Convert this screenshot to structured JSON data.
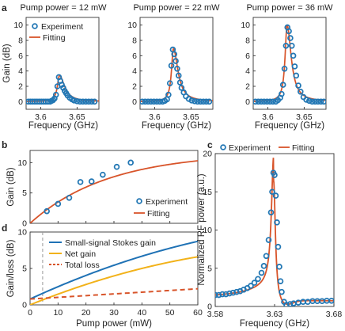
{
  "colors": {
    "experiment": "#2277b4",
    "fitting": "#d8542a",
    "stokes": "#1f72b5",
    "net": "#f2b21a",
    "loss": "#d8542a",
    "axis": "#333333",
    "vline": "#999999"
  },
  "chart_data": [
    {
      "id": "a1",
      "panel_label": "a",
      "type": "scatter",
      "title": "Pump power = 12 mW",
      "xlabel": "Frequency (GHz)",
      "ylabel": "Gain (dB)",
      "xlim": [
        3.58,
        3.68
      ],
      "ylim": [
        -1,
        11
      ],
      "xticks": [
        3.6,
        3.65
      ],
      "xticklabels": [
        "3.6",
        "3.65"
      ],
      "yticks": [
        0,
        2,
        4,
        6,
        8,
        10
      ],
      "yticklabels": [
        "0",
        "2",
        "4",
        "6",
        "8",
        "10"
      ],
      "series": [
        {
          "name": "Experiment",
          "kind": "points",
          "x": [
            3.583,
            3.586,
            3.589,
            3.592,
            3.595,
            3.598,
            3.601,
            3.604,
            3.607,
            3.61,
            3.613,
            3.615,
            3.617,
            3.619,
            3.621,
            3.623,
            3.625,
            3.627,
            3.629,
            3.631,
            3.633,
            3.635,
            3.637,
            3.64,
            3.643,
            3.646,
            3.65,
            3.654,
            3.658,
            3.662,
            3.666,
            3.67,
            3.674
          ],
          "y": [
            0,
            0,
            0,
            0,
            0,
            0,
            0,
            0,
            0,
            0,
            0,
            0.1,
            0.2,
            0.4,
            0.9,
            2.0,
            3.2,
            2.7,
            2.2,
            1.8,
            1.4,
            1.1,
            0.8,
            0.5,
            0.3,
            0.15,
            0.05,
            0,
            0,
            0,
            0,
            0,
            0
          ]
        },
        {
          "name": "Fitting",
          "kind": "lorentz",
          "amplitude": 3.4,
          "center": 3.6258,
          "gamma_left": 0.0035,
          "gamma_right": 0.0085
        }
      ],
      "legend": {
        "entries": [
          "Experiment",
          "Fitting"
        ],
        "position": "top-left"
      }
    },
    {
      "id": "a2",
      "type": "scatter",
      "title": "Pump power = 22 mW",
      "xlabel": "Frequency (GHz)",
      "xlim": [
        3.58,
        3.68
      ],
      "ylim": [
        -1,
        11
      ],
      "xticks": [
        3.6,
        3.65
      ],
      "xticklabels": [
        "3.6",
        "3.65"
      ],
      "yticks": [
        0,
        2,
        4,
        6,
        8,
        10
      ],
      "yticklabels": [
        "0",
        "2",
        "4",
        "6",
        "8",
        "10"
      ],
      "series": [
        {
          "name": "Experiment",
          "kind": "points",
          "x": [
            3.583,
            3.587,
            3.591,
            3.595,
            3.599,
            3.603,
            3.607,
            3.611,
            3.614,
            3.617,
            3.619,
            3.621,
            3.623,
            3.625,
            3.627,
            3.629,
            3.631,
            3.633,
            3.635,
            3.637,
            3.64,
            3.643,
            3.647,
            3.651,
            3.655,
            3.659,
            3.663,
            3.667,
            3.671,
            3.675
          ],
          "y": [
            0,
            0,
            0,
            0,
            0,
            0,
            0,
            0,
            0.1,
            0.3,
            0.9,
            2.4,
            4.7,
            6.8,
            6.2,
            5.3,
            4.3,
            3.4,
            2.5,
            1.8,
            1.2,
            0.7,
            0.35,
            0.15,
            0.05,
            0,
            0,
            0,
            0,
            0
          ]
        },
        {
          "name": "Fitting",
          "kind": "lorentz",
          "amplitude": 6.9,
          "center": 3.6258,
          "gamma_left": 0.0032,
          "gamma_right": 0.0075
        }
      ]
    },
    {
      "id": "a3",
      "type": "scatter",
      "title": "Pump power = 36 mW",
      "xlabel": "Frequency (GHz)",
      "xlim": [
        3.58,
        3.68
      ],
      "ylim": [
        -1,
        11
      ],
      "xticks": [
        3.6,
        3.65
      ],
      "xticklabels": [
        "3.6",
        "3.65"
      ],
      "yticks": [
        0,
        2,
        4,
        6,
        8,
        10
      ],
      "yticklabels": [
        "0",
        "2",
        "4",
        "6",
        "8",
        "10"
      ],
      "series": [
        {
          "name": "Experiment",
          "kind": "points",
          "x": [
            3.583,
            3.587,
            3.591,
            3.595,
            3.599,
            3.603,
            3.607,
            3.611,
            3.614,
            3.617,
            3.619,
            3.621,
            3.623,
            3.625,
            3.627,
            3.629,
            3.631,
            3.633,
            3.635,
            3.637,
            3.639,
            3.642,
            3.645,
            3.649,
            3.653,
            3.657,
            3.661,
            3.665,
            3.669,
            3.673,
            3.677
          ],
          "y": [
            0,
            0,
            0,
            0,
            0,
            0,
            0,
            0,
            0.2,
            0.5,
            1.0,
            2.2,
            4.3,
            7.3,
            9.7,
            9.2,
            8.3,
            7.3,
            6.0,
            4.6,
            3.4,
            2.1,
            1.3,
            0.6,
            0.25,
            0.1,
            0,
            0,
            0,
            0,
            0
          ]
        },
        {
          "name": "Fitting",
          "kind": "lorentz",
          "amplitude": 10.0,
          "center": 3.6265,
          "gamma_left": 0.0033,
          "gamma_right": 0.0068
        }
      ]
    },
    {
      "id": "b",
      "panel_label": "b",
      "type": "scatter",
      "ylabel": "Gain (dB)",
      "xlim": [
        0,
        60
      ],
      "ylim": [
        0,
        12
      ],
      "xticks": [
        0,
        10,
        20,
        30,
        40,
        50,
        60
      ],
      "yticks": [
        0,
        5,
        10
      ],
      "yticklabels": [
        "0",
        "5",
        "10"
      ],
      "series": [
        {
          "name": "Experiment",
          "kind": "points",
          "x": [
            6,
            10,
            14,
            18,
            22,
            26,
            31,
            36
          ],
          "y": [
            2.0,
            3.2,
            4.2,
            6.8,
            6.9,
            8.0,
            9.3,
            10.0
          ]
        },
        {
          "name": "Fitting",
          "kind": "formula",
          "formula": "b_fit"
        }
      ],
      "legend": {
        "entries": [
          "Experiment",
          "Fitting"
        ],
        "position": "bottom-right"
      }
    },
    {
      "id": "d",
      "panel_label": "d",
      "type": "line",
      "xlabel": "Pump power (mW)",
      "ylabel": "Gain/loss (dB)",
      "xlim": [
        0,
        60
      ],
      "ylim": [
        0,
        10
      ],
      "xticks": [
        0,
        10,
        20,
        30,
        40,
        50,
        60
      ],
      "xticklabels": [
        "0",
        "10",
        "20",
        "30",
        "40",
        "50",
        "60"
      ],
      "yticks": [
        0,
        5,
        10
      ],
      "yticklabels": [
        "0",
        "5",
        "10"
      ],
      "vline_x": 4.5,
      "series": [
        {
          "name": "Small-signal Stokes gain",
          "kind": "formula",
          "formula": "d_stokes"
        },
        {
          "name": "Net gain",
          "kind": "formula",
          "formula": "d_net"
        },
        {
          "name": "Total loss",
          "kind": "formula",
          "formula": "d_loss",
          "dashed": true
        }
      ],
      "legend": {
        "entries": [
          "Small-signal Stokes gain",
          "Net gain",
          "Total loss"
        ],
        "position": "top-right"
      }
    },
    {
      "id": "c",
      "panel_label": "c",
      "type": "scatter",
      "xlabel": "Frequency (GHz)",
      "ylabel": "Normalized RF power (a.u.)",
      "xlim": [
        3.58,
        3.68
      ],
      "ylim": [
        0,
        20
      ],
      "xticks": [
        3.58,
        3.63,
        3.68
      ],
      "xticklabels": [
        "3.58",
        "3.63",
        "3.68"
      ],
      "yticks": [
        0,
        5,
        10,
        15,
        20
      ],
      "yticklabels": [
        "0",
        "5",
        "10",
        "15",
        "20"
      ],
      "series": [
        {
          "name": "Experiment",
          "kind": "points",
          "x": [
            3.58,
            3.583,
            3.586,
            3.589,
            3.592,
            3.595,
            3.598,
            3.601,
            3.604,
            3.607,
            3.61,
            3.613,
            3.616,
            3.619,
            3.621,
            3.623,
            3.625,
            3.627,
            3.628,
            3.629,
            3.63,
            3.631,
            3.632,
            3.633,
            3.634,
            3.635,
            3.636,
            3.638,
            3.64,
            3.643,
            3.646,
            3.65,
            3.654,
            3.658,
            3.662,
            3.666,
            3.67,
            3.674,
            3.678
          ],
          "y": [
            1.5,
            1.5,
            1.6,
            1.6,
            1.7,
            1.8,
            1.9,
            2.0,
            2.2,
            2.4,
            2.7,
            3.1,
            3.6,
            4.4,
            5.3,
            6.6,
            8.7,
            12.3,
            15.0,
            17.5,
            17.2,
            14.5,
            11.0,
            7.8,
            5.2,
            3.3,
            1.9,
            0.6,
            0.2,
            0.3,
            0.4,
            0.5,
            0.6,
            0.6,
            0.7,
            0.7,
            0.7,
            0.75,
            0.75
          ]
        },
        {
          "name": "Fitting",
          "kind": "formula",
          "formula": "c_fit"
        }
      ],
      "legend": {
        "entries": [
          "Experiment",
          "Fitting"
        ],
        "position": "top"
      }
    }
  ]
}
